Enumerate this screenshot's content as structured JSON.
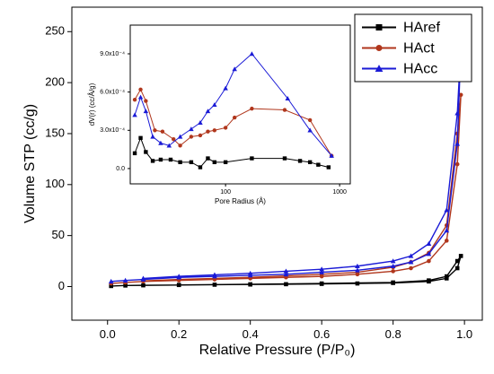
{
  "chart_data": [
    {
      "type": "line",
      "xlabel": "Relative Pressure (P/P₀)",
      "ylabel": "Volume STP (cc/g)",
      "xlim": [
        -0.1,
        1.05
      ],
      "ylim": [
        -33,
        274
      ],
      "xticks": [
        {
          "value": 0,
          "label": "0.0"
        },
        0.2,
        0.4,
        0.6,
        0.8,
        {
          "value": 1,
          "label": "1.0"
        }
      ],
      "yticks": [
        0,
        50,
        100,
        150,
        200,
        250
      ],
      "legend": "upper right",
      "series": [
        {
          "name": "HAref",
          "color": "#000000",
          "marker": "square",
          "x": [
            0.01,
            0.05,
            0.1,
            0.2,
            0.3,
            0.4,
            0.5,
            0.6,
            0.7,
            0.8,
            0.9,
            0.95,
            0.98,
            0.99,
            0.98,
            0.95,
            0.9,
            0.8,
            0.6,
            0.4,
            0.2
          ],
          "values": [
            0.5,
            1,
            1.2,
            1.5,
            1.8,
            2,
            2.3,
            2.6,
            3,
            3.5,
            5,
            8,
            18,
            30,
            25,
            10,
            6,
            4,
            3,
            2.2,
            1.6
          ]
        },
        {
          "name": "HAct",
          "color": "#b0361c",
          "marker": "circle",
          "x": [
            0.01,
            0.05,
            0.1,
            0.2,
            0.3,
            0.4,
            0.5,
            0.6,
            0.7,
            0.8,
            0.85,
            0.9,
            0.95,
            0.98,
            0.99,
            0.98,
            0.95,
            0.9,
            0.85,
            0.8,
            0.7,
            0.6,
            0.5,
            0.4,
            0.3,
            0.2,
            0.1
          ],
          "values": [
            3,
            4,
            5,
            6,
            7,
            8,
            9,
            10,
            12,
            15,
            18,
            25,
            45,
            120,
            188,
            150,
            60,
            33,
            24,
            19,
            14,
            12,
            10.5,
            9,
            8,
            7,
            5.5
          ]
        },
        {
          "name": "HAcc",
          "color": "#1a1ad6",
          "marker": "triangle",
          "x": [
            0.01,
            0.05,
            0.1,
            0.2,
            0.3,
            0.4,
            0.5,
            0.6,
            0.7,
            0.8,
            0.85,
            0.9,
            0.95,
            0.98,
            0.99,
            0.98,
            0.95,
            0.9,
            0.85,
            0.8,
            0.7,
            0.6,
            0.5,
            0.4,
            0.3,
            0.2,
            0.1
          ],
          "values": [
            5,
            6,
            7,
            9,
            10,
            11,
            12,
            14,
            16,
            20,
            24,
            32,
            55,
            140,
            236,
            170,
            75,
            42,
            30,
            25,
            20,
            17,
            15,
            13,
            11.5,
            10,
            8
          ]
        }
      ]
    },
    {
      "type": "line",
      "xlabel": "Pore Radius (Å)",
      "ylabel": "dV(r) (cc/Å/g)",
      "xscale": "log",
      "xlim": [
        14.6,
        1240
      ],
      "ylim": [
        -0.00012,
        0.001125
      ],
      "xticks": [
        100,
        1000
      ],
      "yticks": [
        {
          "value": 0,
          "label": "0.0"
        },
        {
          "value": 0.0003,
          "label": "3.0x10⁻⁴"
        },
        {
          "value": 0.0006,
          "label": "6.0x10⁻⁴"
        },
        {
          "value": 0.0009,
          "label": "9.0x10⁻⁴"
        }
      ],
      "series": [
        {
          "color": "#000000",
          "marker": "square",
          "x": [
            16,
            18,
            20,
            23,
            27,
            33,
            40,
            50,
            60,
            70,
            80,
            100,
            170,
            330,
            450,
            550,
            650,
            800
          ],
          "values": [
            0.00012,
            0.00024,
            0.00013,
            6e-05,
            7e-05,
            7e-05,
            5e-05,
            5e-05,
            1e-05,
            8e-05,
            5e-05,
            5e-05,
            8e-05,
            8e-05,
            6e-05,
            5e-05,
            3e-05,
            1e-05
          ]
        },
        {
          "color": "#b0361c",
          "marker": "circle",
          "x": [
            16,
            18,
            20,
            24,
            28,
            35,
            40,
            50,
            60,
            70,
            80,
            100,
            120,
            170,
            330,
            550,
            850
          ],
          "values": [
            0.00054,
            0.00062,
            0.00053,
            0.0003,
            0.00029,
            0.00023,
            0.00018,
            0.00025,
            0.00026,
            0.00029,
            0.0003,
            0.00032,
            0.0004,
            0.00047,
            0.00046,
            0.00038,
            0.0001
          ]
        },
        {
          "color": "#1a1ad6",
          "marker": "triangle",
          "x": [
            16,
            18,
            20,
            23,
            27,
            32,
            40,
            50,
            60,
            70,
            80,
            100,
            120,
            170,
            350,
            550,
            850
          ],
          "values": [
            0.00042,
            0.00056,
            0.00045,
            0.00025,
            0.0002,
            0.00018,
            0.00025,
            0.00031,
            0.00036,
            0.00045,
            0.0005,
            0.00063,
            0.00078,
            0.0009,
            0.00055,
            0.0003,
            0.0001
          ]
        }
      ]
    }
  ]
}
